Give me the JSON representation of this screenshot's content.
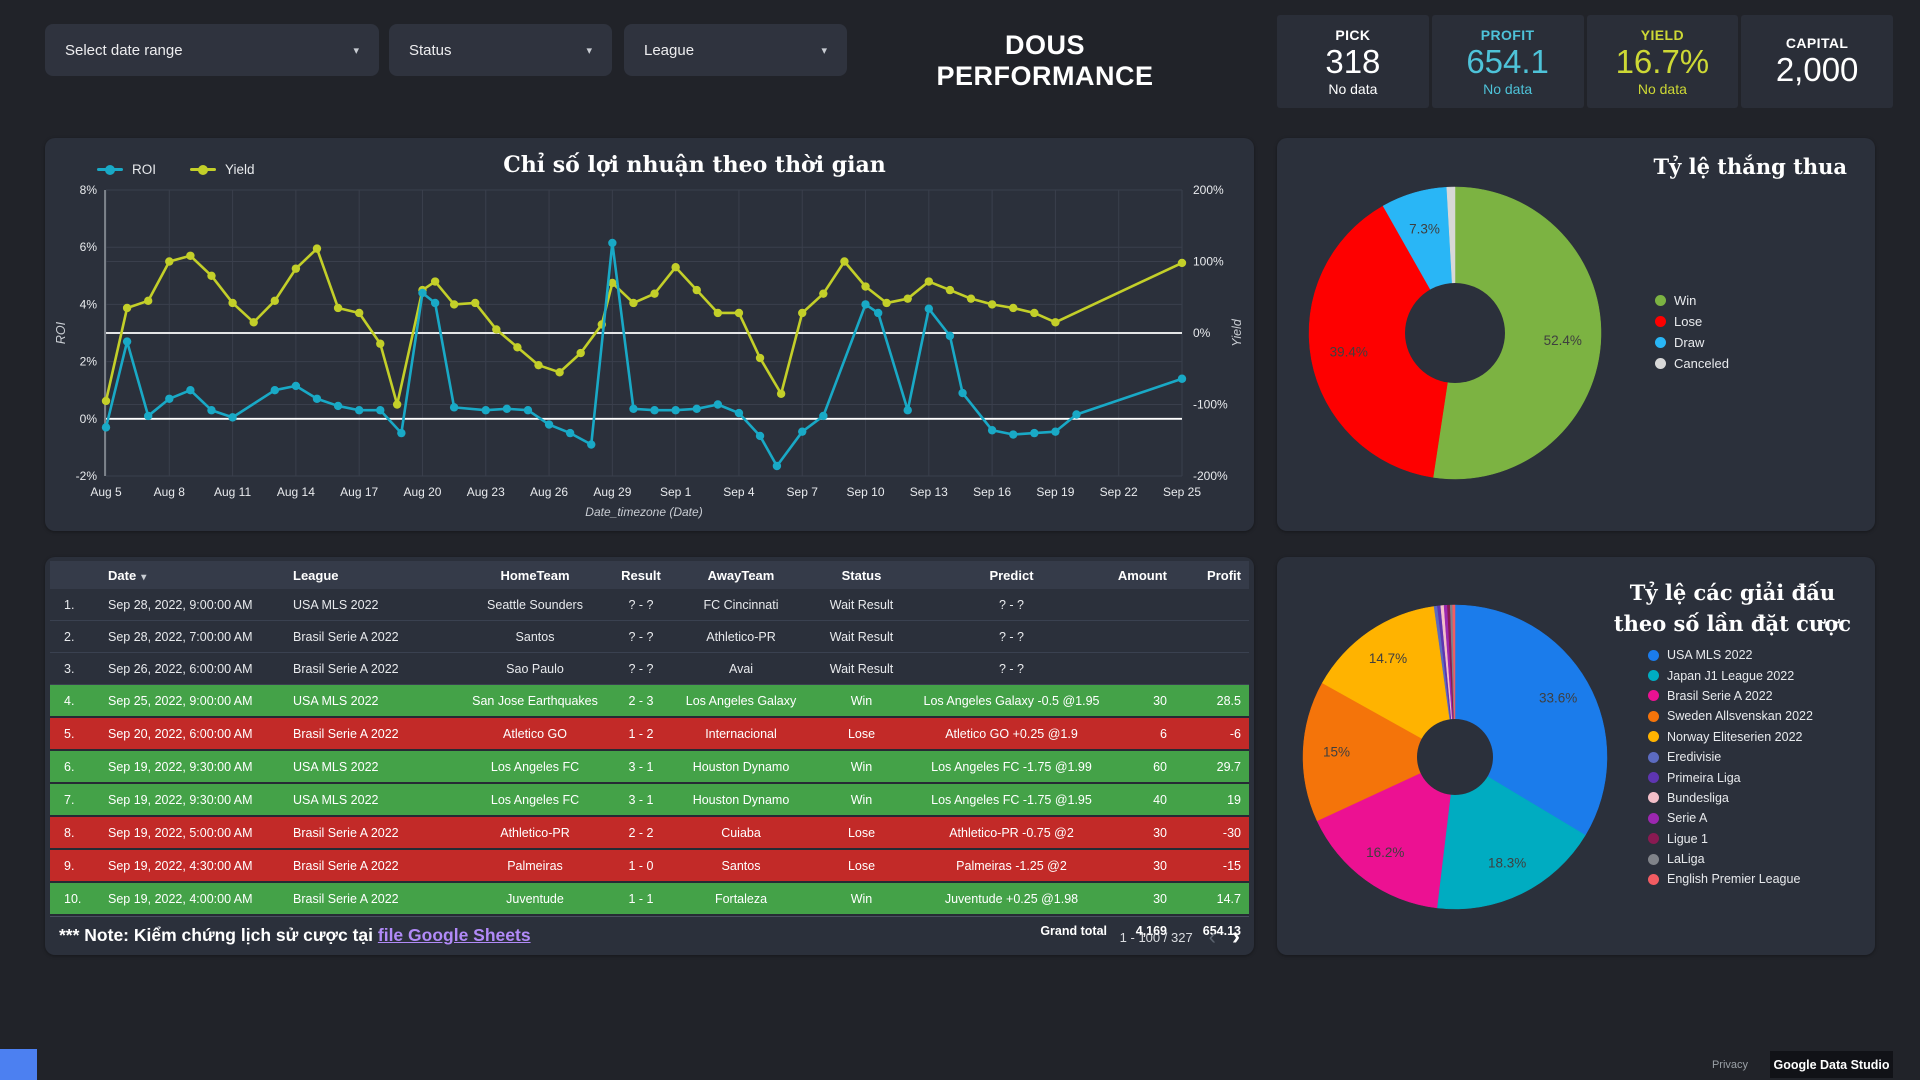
{
  "header": {
    "title": "DOUS PERFORMANCE"
  },
  "filters": [
    {
      "label": "Select date range"
    },
    {
      "label": "Status"
    },
    {
      "label": "League"
    }
  ],
  "icons": {
    "dropdown": "▾",
    "sort_desc": "▾",
    "chevron_left": "‹",
    "chevron_right": "›"
  },
  "kpis": [
    {
      "label": "PICK",
      "value": "318",
      "note": "No data",
      "color": "#FFFFFF"
    },
    {
      "label": "PROFIT",
      "value": "654.1",
      "note": "No data",
      "color": "#4EC3D9"
    },
    {
      "label": "YIELD",
      "value": "16.7%",
      "note": "No data",
      "color": "#CDD835"
    },
    {
      "label": "CAPITAL",
      "value": "2,000",
      "note": "",
      "color": "#FFFFFF"
    }
  ],
  "chart_data": [
    {
      "type": "line",
      "title": "Chỉ số lợi nhuận theo thời gian",
      "xlabel": "Date_timezone (Date)",
      "x_range": [
        0,
        51
      ],
      "x_tick_days": [
        0,
        3,
        6,
        9,
        12,
        15,
        18,
        21,
        24,
        27,
        30,
        33,
        36,
        39,
        42,
        45,
        48,
        51
      ],
      "x_tick_labels": [
        "Aug 5",
        "Aug 8",
        "Aug 11",
        "Aug 14",
        "Aug 17",
        "Aug 20",
        "Aug 23",
        "Aug 26",
        "Aug 29",
        "Sep 1",
        "Sep 4",
        "Sep 7",
        "Sep 10",
        "Sep 13",
        "Sep 16",
        "Sep 19",
        "Sep 22",
        "Sep 25"
      ],
      "left_axis": {
        "title": "ROI",
        "range": [
          8,
          -2
        ],
        "tick_values": [
          8,
          6,
          4,
          2,
          0,
          -2
        ],
        "tick_labels": [
          "8%",
          "6%",
          "4%",
          "2%",
          "0%",
          "-2%"
        ]
      },
      "right_axis": {
        "title": "Yield",
        "range": [
          200,
          -200
        ],
        "tick_values": [
          200,
          100,
          0,
          -100,
          -200
        ],
        "tick_labels": [
          "200%",
          "100%",
          "0%",
          "-100%",
          "-200%"
        ]
      },
      "grid": true,
      "legend_position": "top-left",
      "series": [
        {
          "name": "ROI",
          "axis": "left",
          "color": "#19A9C6",
          "points": [
            [
              0,
              -0.3
            ],
            [
              1,
              2.7
            ],
            [
              2,
              0.1
            ],
            [
              3,
              0.7
            ],
            [
              4,
              1.0
            ],
            [
              5,
              0.3
            ],
            [
              6,
              0.05
            ],
            [
              8,
              1.0
            ],
            [
              9,
              1.15
            ],
            [
              10,
              0.7
            ],
            [
              11,
              0.45
            ],
            [
              12,
              0.3
            ],
            [
              13,
              0.3
            ],
            [
              14,
              -0.5
            ],
            [
              15,
              4.4
            ],
            [
              15.6,
              4.05
            ],
            [
              16.5,
              0.4
            ],
            [
              18,
              0.3
            ],
            [
              19,
              0.35
            ],
            [
              20,
              0.3
            ],
            [
              21,
              -0.2
            ],
            [
              22,
              -0.5
            ],
            [
              23,
              -0.9
            ],
            [
              24,
              6.15
            ],
            [
              25,
              0.35
            ],
            [
              26,
              0.3
            ],
            [
              27,
              0.3
            ],
            [
              28,
              0.35
            ],
            [
              29,
              0.5
            ],
            [
              30,
              0.2
            ],
            [
              31,
              -0.6
            ],
            [
              31.8,
              -1.65
            ],
            [
              33,
              -0.45
            ],
            [
              34,
              0.1
            ],
            [
              36,
              4.0
            ],
            [
              36.6,
              3.7
            ],
            [
              38,
              0.3
            ],
            [
              39,
              3.85
            ],
            [
              40,
              2.9
            ],
            [
              40.6,
              0.9
            ],
            [
              42,
              -0.4
            ],
            [
              43,
              -0.55
            ],
            [
              44,
              -0.5
            ],
            [
              45,
              -0.45
            ],
            [
              46,
              0.15
            ],
            [
              51,
              1.4
            ]
          ]
        },
        {
          "name": "Yield",
          "axis": "right",
          "color": "#C3CF29",
          "points": [
            [
              0,
              -95
            ],
            [
              1,
              35
            ],
            [
              2,
              45
            ],
            [
              3,
              100
            ],
            [
              4,
              108
            ],
            [
              5,
              80
            ],
            [
              6,
              42
            ],
            [
              7,
              15
            ],
            [
              8,
              45
            ],
            [
              9,
              90
            ],
            [
              10,
              118
            ],
            [
              11,
              35
            ],
            [
              12,
              28
            ],
            [
              13,
              -15
            ],
            [
              13.8,
              -100
            ],
            [
              15,
              60
            ],
            [
              15.6,
              72
            ],
            [
              16.5,
              40
            ],
            [
              17.5,
              42
            ],
            [
              18.5,
              5
            ],
            [
              19.5,
              -20
            ],
            [
              20.5,
              -45
            ],
            [
              21.5,
              -55
            ],
            [
              22.5,
              -28
            ],
            [
              23.5,
              12
            ],
            [
              24,
              70
            ],
            [
              25,
              42
            ],
            [
              26,
              55
            ],
            [
              27,
              92
            ],
            [
              28,
              60
            ],
            [
              29,
              28
            ],
            [
              30,
              28
            ],
            [
              31,
              -35
            ],
            [
              32,
              -85
            ],
            [
              33,
              28
            ],
            [
              34,
              55
            ],
            [
              35,
              100
            ],
            [
              36,
              65
            ],
            [
              37,
              42
            ],
            [
              38,
              48
            ],
            [
              39,
              72
            ],
            [
              40,
              60
            ],
            [
              41,
              48
            ],
            [
              42,
              40
            ],
            [
              43,
              35
            ],
            [
              44,
              28
            ],
            [
              45,
              15
            ],
            [
              51,
              98
            ]
          ]
        }
      ]
    },
    {
      "type": "pie",
      "title": "Tỷ lệ thắng thua",
      "hole": 0.34,
      "label_threshold": 5,
      "legend_position": "right",
      "slices": [
        {
          "label": "Win",
          "value": 52.4,
          "color": "#7CB342"
        },
        {
          "label": "Lose",
          "value": 39.4,
          "color": "#FE0000"
        },
        {
          "label": "Draw",
          "value": 7.3,
          "color": "#29B6F6"
        },
        {
          "label": "Canceled",
          "value": 0.9,
          "color": "#D8D8D8"
        }
      ]
    },
    {
      "type": "pie",
      "title": "Tỷ lệ các giải đấu theo số lần đặt cược",
      "title_lines": [
        "Tỷ lệ các giải đấu",
        "theo số lần đặt cược"
      ],
      "hole": 0.25,
      "label_threshold": 5,
      "legend_position": "right",
      "slices": [
        {
          "label": "USA MLS 2022",
          "value": 33.6,
          "color": "#1B7CEB"
        },
        {
          "label": "Japan J1 League 2022",
          "value": 18.3,
          "color": "#00ACC1"
        },
        {
          "label": "Brasil Serie A 2022",
          "value": 16.2,
          "color": "#EC1192"
        },
        {
          "label": "Sweden Allsvenskan 2022",
          "value": 15,
          "color": "#F4740A"
        },
        {
          "label": "Norway Eliteserien 2022",
          "value": 14.7,
          "color": "#FFB300"
        },
        {
          "label": "Eredivisie",
          "value": 0.35,
          "color": "#5C6BC0"
        },
        {
          "label": "Primeira Liga",
          "value": 0.35,
          "color": "#5E35B1"
        },
        {
          "label": "Bundesliga",
          "value": 0.35,
          "color": "#F3BFC9"
        },
        {
          "label": "Serie A",
          "value": 0.35,
          "color": "#9C27B0"
        },
        {
          "label": "Ligue 1",
          "value": 0.3,
          "color": "#8A1A52"
        },
        {
          "label": "LaLiga",
          "value": 0.25,
          "color": "#808389"
        },
        {
          "label": "English Premier League",
          "value": 0.25,
          "color": "#F25C62"
        }
      ]
    }
  ],
  "table": {
    "headers": [
      "Date",
      "League",
      "HomeTeam",
      "Result",
      "AwayTeam",
      "Status",
      "Predict",
      "Amount",
      "Profit"
    ],
    "rows": [
      {
        "idx": "1.",
        "state": "wait",
        "cells": [
          "Sep 28, 2022, 9:00:00 AM",
          "USA MLS 2022",
          "Seattle Sounders",
          "? - ?",
          "FC Cincinnati",
          "Wait Result",
          "? - ?",
          "",
          ""
        ]
      },
      {
        "idx": "2.",
        "state": "wait",
        "cells": [
          "Sep 28, 2022, 7:00:00 AM",
          "Brasil Serie A 2022",
          "Santos",
          "? - ?",
          "Athletico-PR",
          "Wait Result",
          "? - ?",
          "",
          ""
        ]
      },
      {
        "idx": "3.",
        "state": "wait",
        "cells": [
          "Sep 26, 2022, 6:00:00 AM",
          "Brasil Serie A 2022",
          "Sao Paulo",
          "? - ?",
          "Avai",
          "Wait Result",
          "? - ?",
          "",
          ""
        ]
      },
      {
        "idx": "4.",
        "state": "win",
        "cells": [
          "Sep 25, 2022, 9:00:00 AM",
          "USA MLS 2022",
          "San Jose Earthquakes",
          "2 - 3",
          "Los Angeles Galaxy",
          "Win",
          "Los Angeles Galaxy -0.5 @1.95",
          "30",
          "28.5"
        ]
      },
      {
        "idx": "5.",
        "state": "lose",
        "cells": [
          "Sep 20, 2022, 6:00:00 AM",
          "Brasil Serie A 2022",
          "Atletico GO",
          "1 - 2",
          "Internacional",
          "Lose",
          "Atletico GO +0.25 @1.9",
          "6",
          "-6"
        ]
      },
      {
        "idx": "6.",
        "state": "win",
        "cells": [
          "Sep 19, 2022, 9:30:00 AM",
          "USA MLS 2022",
          "Los Angeles FC",
          "3 - 1",
          "Houston Dynamo",
          "Win",
          "Los Angeles FC -1.75 @1.99",
          "60",
          "29.7"
        ]
      },
      {
        "idx": "7.",
        "state": "win",
        "cells": [
          "Sep 19, 2022, 9:30:00 AM",
          "USA MLS 2022",
          "Los Angeles FC",
          "3 - 1",
          "Houston Dynamo",
          "Win",
          "Los Angeles FC -1.75 @1.95",
          "40",
          "19"
        ]
      },
      {
        "idx": "8.",
        "state": "lose",
        "cells": [
          "Sep 19, 2022, 5:00:00 AM",
          "Brasil Serie A 2022",
          "Athletico-PR",
          "2 - 2",
          "Cuiaba",
          "Lose",
          "Athletico-PR -0.75 @2",
          "30",
          "-30"
        ]
      },
      {
        "idx": "9.",
        "state": "lose",
        "cells": [
          "Sep 19, 2022, 4:30:00 AM",
          "Brasil Serie A 2022",
          "Palmeiras",
          "1 - 0",
          "Santos",
          "Lose",
          "Palmeiras -1.25 @2",
          "30",
          "-15"
        ]
      },
      {
        "idx": "10.",
        "state": "win",
        "cells": [
          "Sep 19, 2022, 4:00:00 AM",
          "Brasil Serie A 2022",
          "Juventude",
          "1 - 1",
          "Fortaleza",
          "Win",
          "Juventude +0.25 @1.98",
          "30",
          "14.7"
        ]
      }
    ],
    "grand_total": {
      "label": "Grand total",
      "amount": "4,169",
      "profit": "654.13"
    }
  },
  "note": {
    "prefix": "*** Note: Kiểm chứng lịch sử cược tại ",
    "link_text": "file Google Sheets"
  },
  "pagination": {
    "range": "1 - 100 / 327"
  },
  "footer": {
    "privacy": "Privacy",
    "brand": "Google Data Studio"
  }
}
